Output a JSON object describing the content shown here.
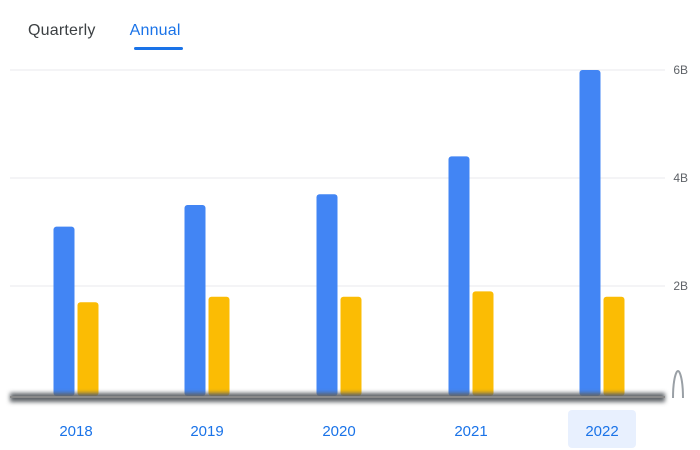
{
  "tabs": {
    "quarterly": "Quarterly",
    "annual": "Annual",
    "active": "annual"
  },
  "colors": {
    "series_a": "#4285f4",
    "series_b": "#fbbc04",
    "accent": "#1a73e8",
    "selected_category_bg": "#e8f0fe"
  },
  "chart_data": {
    "type": "bar",
    "categories": [
      "2018",
      "2019",
      "2020",
      "2021",
      "2022"
    ],
    "selected_category": "2022",
    "series": [
      {
        "values": [
          3.1,
          3.5,
          3.7,
          4.4,
          6.0
        ]
      },
      {
        "values": [
          1.7,
          1.8,
          1.8,
          1.9,
          1.8
        ]
      }
    ],
    "y_ticks": [
      {
        "value": 2,
        "label": "2B"
      },
      {
        "value": 4,
        "label": "4B"
      },
      {
        "value": 6,
        "label": "6B"
      }
    ],
    "ylim": [
      0,
      6
    ],
    "grid": true
  }
}
